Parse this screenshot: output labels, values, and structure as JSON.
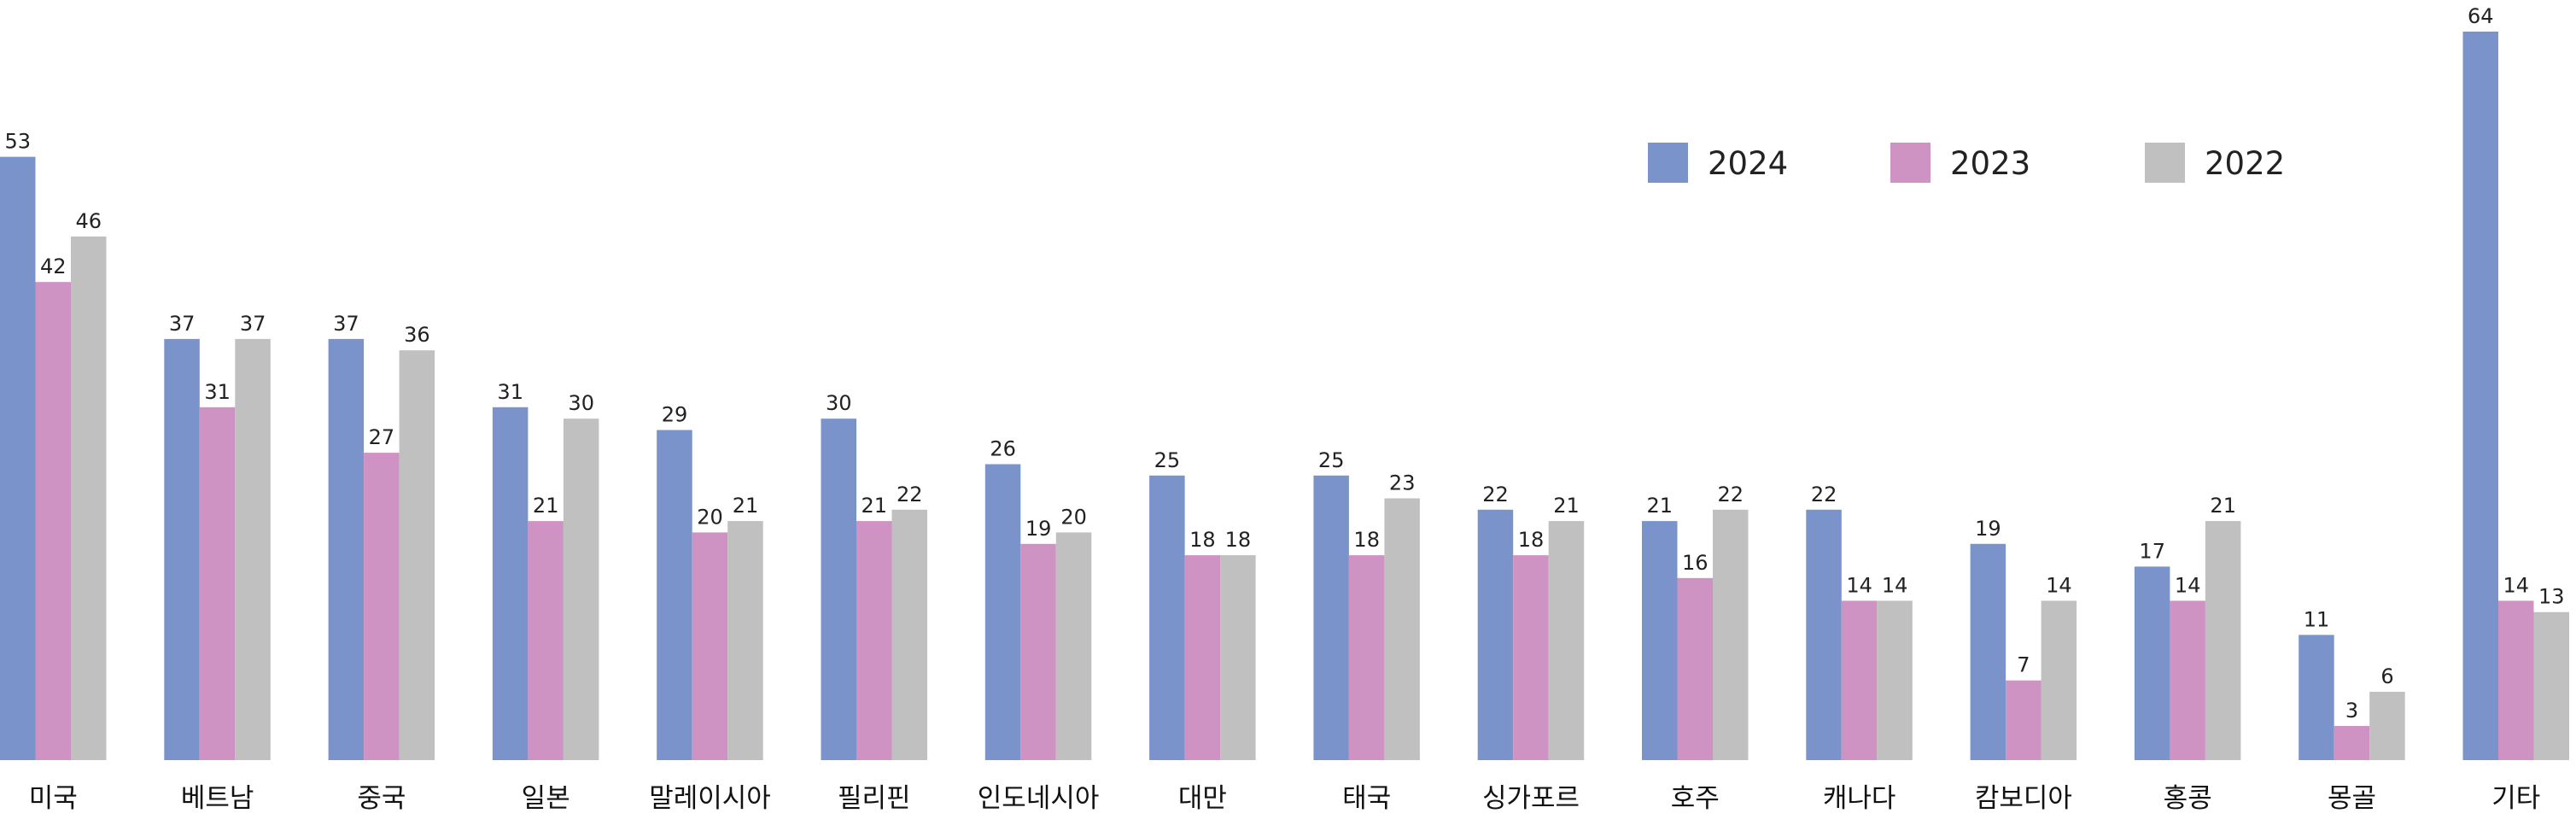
{
  "chart_data": {
    "type": "bar",
    "categories": [
      "미국",
      "베트남",
      "중국",
      "일본",
      "말레이시아",
      "필리핀",
      "인도네시아",
      "대만",
      "태국",
      "싱가포르",
      "호주",
      "캐나다",
      "캄보디아",
      "홍콩",
      "몽골",
      "기타"
    ],
    "series": [
      {
        "name": "2024",
        "color": "#7b93cb",
        "values": [
          53,
          37,
          37,
          31,
          29,
          30,
          26,
          25,
          25,
          22,
          21,
          22,
          19,
          17,
          11,
          64
        ]
      },
      {
        "name": "2023",
        "color": "#cf93c3",
        "values": [
          42,
          31,
          27,
          21,
          20,
          21,
          19,
          18,
          18,
          18,
          16,
          14,
          7,
          14,
          3,
          14
        ]
      },
      {
        "name": "2022",
        "color": "#c0c0c0",
        "values": [
          46,
          37,
          36,
          30,
          21,
          22,
          20,
          18,
          23,
          21,
          22,
          14,
          14,
          21,
          6,
          13
        ]
      }
    ],
    "ylim": [
      0,
      64
    ],
    "grid": false,
    "legend": "top-right",
    "data_labels": true
  }
}
